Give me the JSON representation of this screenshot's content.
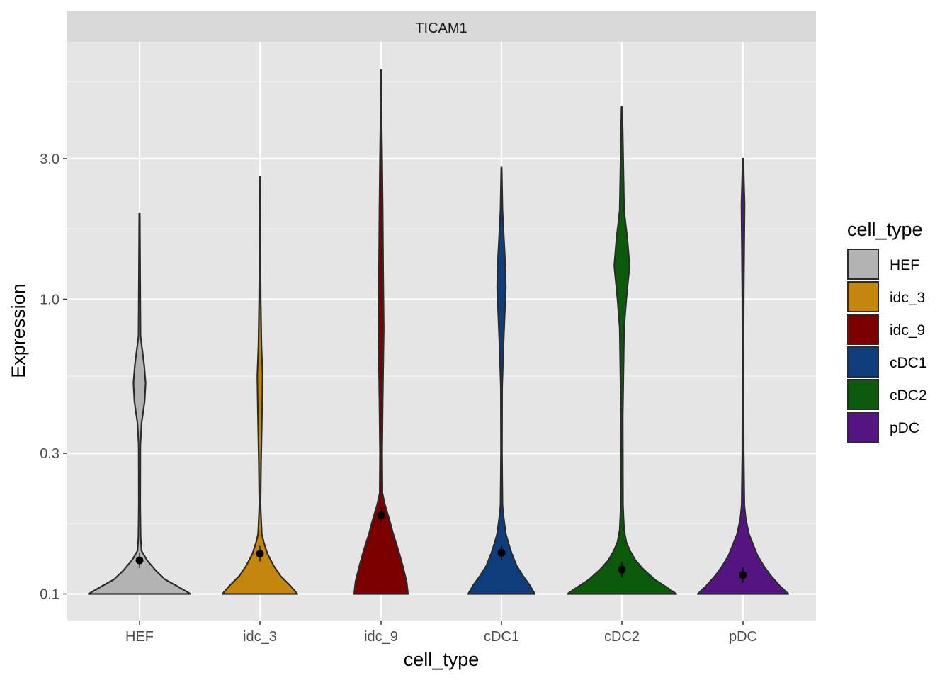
{
  "chart_data": {
    "type": "violin",
    "facet_title": "TICAM1",
    "xlabel": "cell_type",
    "ylabel": "Expression",
    "y_scale": "log10",
    "ylim": [
      0.087,
      7.5
    ],
    "y_ticks": [
      {
        "value": 0.1,
        "label": "0.1"
      },
      {
        "value": 0.3,
        "label": "0.3"
      },
      {
        "value": 1.0,
        "label": "1.0"
      },
      {
        "value": 3.0,
        "label": "3.0"
      }
    ],
    "categories": [
      "HEF",
      "idc_3",
      "idc_9",
      "cDC1",
      "cDC2",
      "pDC"
    ],
    "colors": [
      "#b3b3b3",
      "#c5860d",
      "#7a0000",
      "#0f3c7a",
      "#0b5a0b",
      "#541582"
    ],
    "medians": [
      0.13,
      0.137,
      0.185,
      0.138,
      0.121,
      0.116
    ],
    "series": [
      {
        "category": "HEF",
        "max": 1.95,
        "profile": [
          [
            0.1,
            1.0
          ],
          [
            0.106,
            0.75
          ],
          [
            0.112,
            0.5
          ],
          [
            0.12,
            0.32
          ],
          [
            0.13,
            0.15
          ],
          [
            0.14,
            0.04
          ],
          [
            0.155,
            0.022
          ],
          [
            0.2,
            0.014
          ],
          [
            0.32,
            0.016
          ],
          [
            0.38,
            0.04
          ],
          [
            0.45,
            0.1
          ],
          [
            0.52,
            0.12
          ],
          [
            0.6,
            0.09
          ],
          [
            0.75,
            0.02
          ],
          [
            1.2,
            0.012
          ],
          [
            1.95,
            0.006
          ]
        ]
      },
      {
        "category": "idc_3",
        "max": 2.6,
        "profile": [
          [
            0.1,
            1.0
          ],
          [
            0.107,
            0.8
          ],
          [
            0.115,
            0.55
          ],
          [
            0.125,
            0.36
          ],
          [
            0.137,
            0.2
          ],
          [
            0.15,
            0.1
          ],
          [
            0.16,
            0.05
          ],
          [
            0.2,
            0.015
          ],
          [
            0.28,
            0.03
          ],
          [
            0.45,
            0.06
          ],
          [
            0.55,
            0.07
          ],
          [
            0.7,
            0.04
          ],
          [
            1.0,
            0.02
          ],
          [
            1.5,
            0.012
          ],
          [
            2.6,
            0.006
          ]
        ]
      },
      {
        "category": "idc_9",
        "max": 6.0,
        "profile": [
          [
            0.1,
            1.0
          ],
          [
            0.11,
            0.95
          ],
          [
            0.125,
            0.8
          ],
          [
            0.14,
            0.65
          ],
          [
            0.16,
            0.45
          ],
          [
            0.18,
            0.3
          ],
          [
            0.2,
            0.15
          ],
          [
            0.22,
            0.05
          ],
          [
            0.3,
            0.04
          ],
          [
            0.45,
            0.06
          ],
          [
            0.8,
            0.1
          ],
          [
            1.2,
            0.08
          ],
          [
            2.0,
            0.06
          ],
          [
            3.0,
            0.04
          ],
          [
            4.0,
            0.02
          ],
          [
            6.0,
            0.006
          ]
        ]
      },
      {
        "category": "cDC1",
        "max": 2.8,
        "profile": [
          [
            0.1,
            1.0
          ],
          [
            0.107,
            0.85
          ],
          [
            0.115,
            0.65
          ],
          [
            0.125,
            0.45
          ],
          [
            0.138,
            0.3
          ],
          [
            0.15,
            0.2
          ],
          [
            0.16,
            0.13
          ],
          [
            0.18,
            0.07
          ],
          [
            0.2,
            0.03
          ],
          [
            0.3,
            0.015
          ],
          [
            0.5,
            0.02
          ],
          [
            0.7,
            0.06
          ],
          [
            1.1,
            0.13
          ],
          [
            1.4,
            0.1
          ],
          [
            2.0,
            0.03
          ],
          [
            2.8,
            0.006
          ]
        ]
      },
      {
        "category": "cDC2",
        "max": 4.5,
        "profile": [
          [
            0.1,
            1.0
          ],
          [
            0.106,
            0.8
          ],
          [
            0.112,
            0.6
          ],
          [
            0.121,
            0.4
          ],
          [
            0.13,
            0.25
          ],
          [
            0.14,
            0.15
          ],
          [
            0.15,
            0.08
          ],
          [
            0.165,
            0.04
          ],
          [
            0.2,
            0.02
          ],
          [
            0.4,
            0.015
          ],
          [
            0.8,
            0.04
          ],
          [
            1.0,
            0.08
          ],
          [
            1.3,
            0.14
          ],
          [
            1.6,
            0.1
          ],
          [
            2.0,
            0.04
          ],
          [
            4.5,
            0.006
          ]
        ]
      },
      {
        "category": "pDC",
        "max": 3.0,
        "profile": [
          [
            0.1,
            1.0
          ],
          [
            0.107,
            0.8
          ],
          [
            0.116,
            0.6
          ],
          [
            0.125,
            0.45
          ],
          [
            0.135,
            0.32
          ],
          [
            0.15,
            0.2
          ],
          [
            0.16,
            0.13
          ],
          [
            0.18,
            0.06
          ],
          [
            0.2,
            0.03
          ],
          [
            0.3,
            0.015
          ],
          [
            0.6,
            0.012
          ],
          [
            1.0,
            0.015
          ],
          [
            1.5,
            0.025
          ],
          [
            2.1,
            0.035
          ],
          [
            2.5,
            0.02
          ],
          [
            3.0,
            0.008
          ]
        ]
      }
    ],
    "legend_title": "cell_type",
    "legend_position": "right",
    "grid": true
  }
}
